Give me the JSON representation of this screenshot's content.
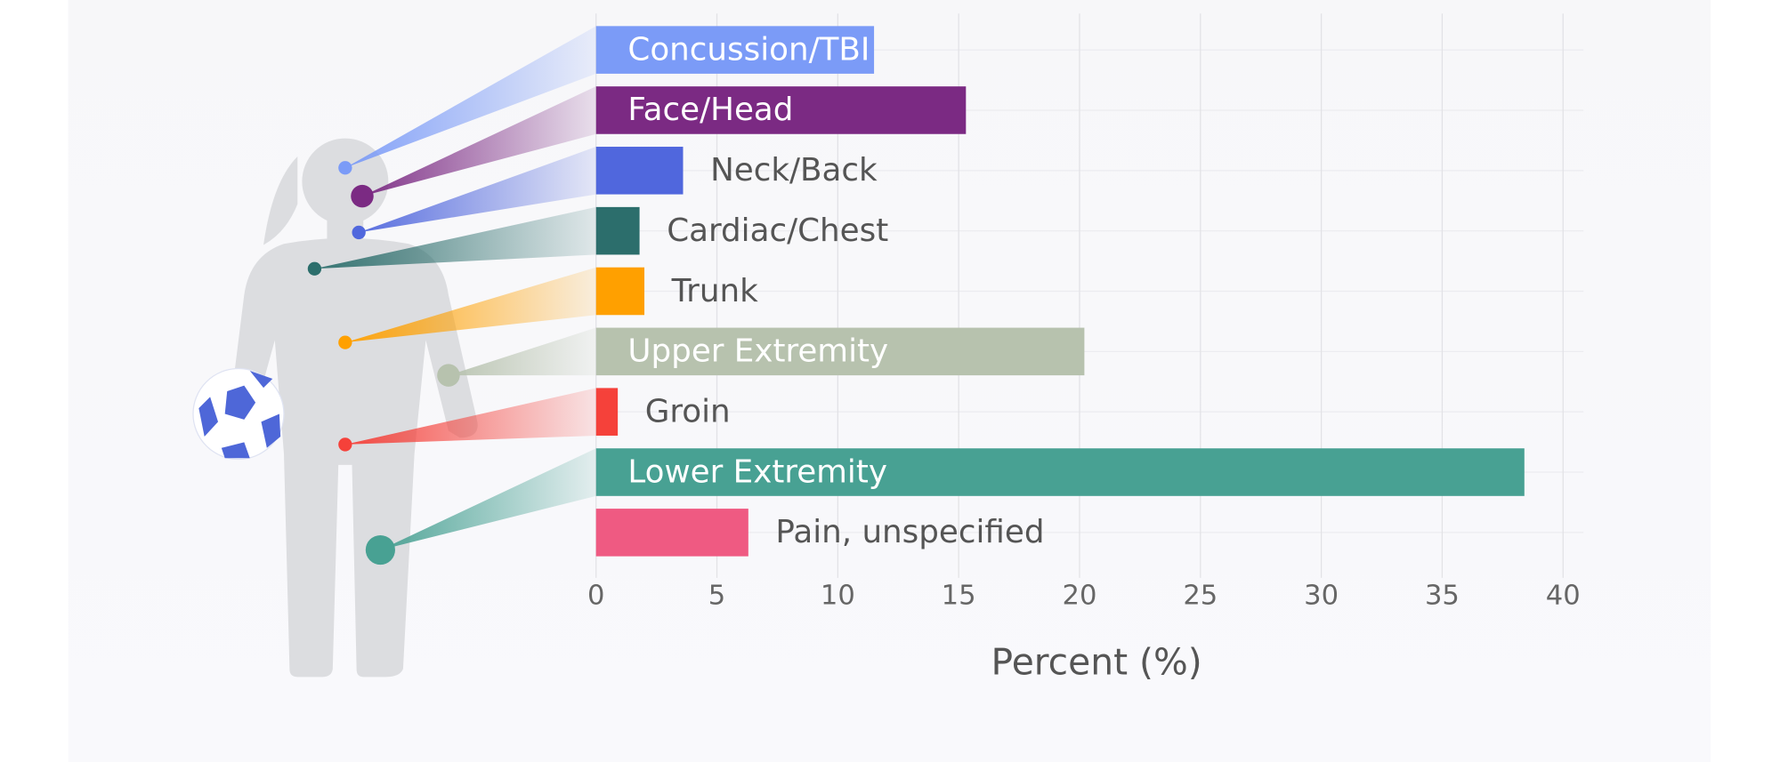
{
  "chart_data": {
    "type": "bar",
    "orientation": "horizontal",
    "categories": [
      "Concussion/TBI",
      "Face/Head",
      "Neck/Back",
      "Cardiac/Chest",
      "Trunk",
      "Upper Extremity",
      "Groin",
      "Lower Extremity",
      "Pain, unspecified"
    ],
    "values": [
      11.5,
      15.3,
      3.6,
      1.8,
      2.0,
      20.2,
      0.9,
      38.4,
      6.3
    ],
    "colors": [
      "#7b9bf7",
      "#7b2a83",
      "#5067dd",
      "#2c6e6c",
      "#ffa000",
      "#b7c2ae",
      "#f5413a",
      "#48a193",
      "#ef5a82"
    ],
    "xlabel": "Percent (%)",
    "xlim": [
      0,
      40
    ],
    "xticks": [
      0,
      5,
      10,
      15,
      20,
      25,
      30,
      35,
      40
    ],
    "grid": true
  }
}
